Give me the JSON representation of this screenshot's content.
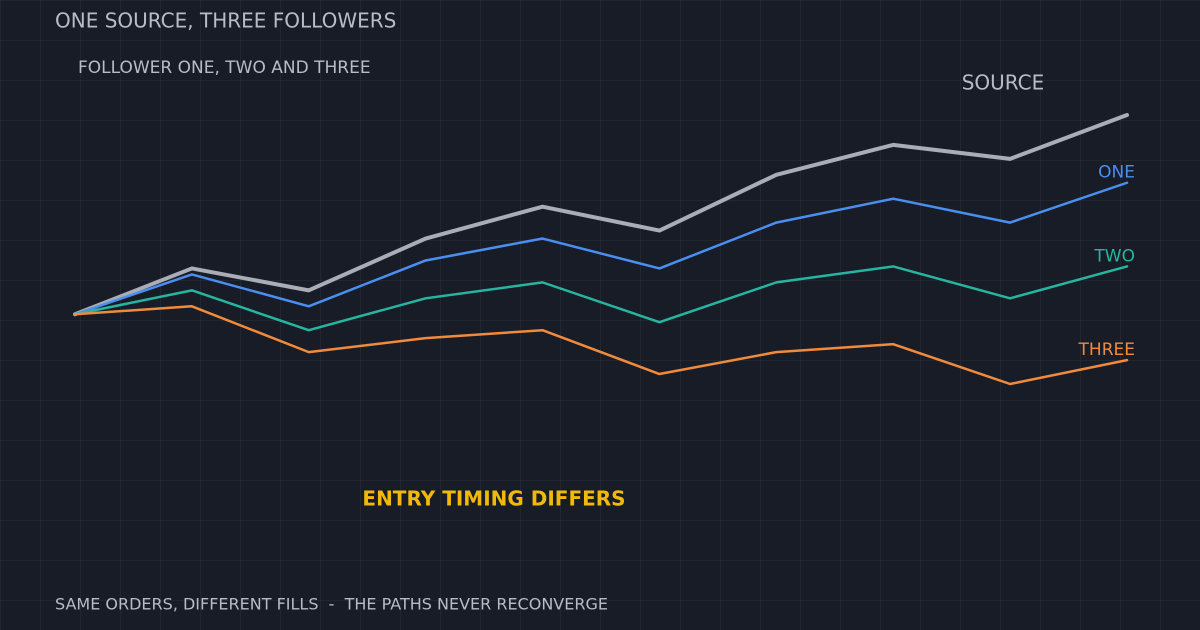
{
  "chart_data": {
    "type": "line",
    "title": "ONE SOURCE, THREE FOLLOWERS",
    "subtitle": "FOLLOWER ONE, TWO AND THREE",
    "annotation": "ENTRY TIMING DIFFERS",
    "footer": "SAME ORDERS, DIFFERENT FILLS  -  THE PATHS NEVER RECONVERGE",
    "categories": [
      null,
      null,
      null,
      null,
      null,
      null,
      null,
      null,
      null,
      null
    ],
    "series": [
      {
        "name": "SOURCE",
        "color": "#a9adb6",
        "values": [
          0,
          23,
          12,
          38,
          54,
          42,
          70,
          85,
          78,
          100
        ]
      },
      {
        "name": "ONE",
        "color": "#4a8ef0",
        "values": [
          0,
          20,
          4,
          27,
          38,
          23,
          46,
          58,
          46,
          66
        ]
      },
      {
        "name": "TWO",
        "color": "#26b5a0",
        "values": [
          0,
          12,
          -8,
          8,
          16,
          -4,
          16,
          24,
          8,
          24
        ]
      },
      {
        "name": "THREE",
        "color": "#f08a3c",
        "values": [
          0,
          4,
          -19,
          -12,
          -8,
          -30,
          -19,
          -15,
          -35,
          -23
        ]
      }
    ]
  }
}
